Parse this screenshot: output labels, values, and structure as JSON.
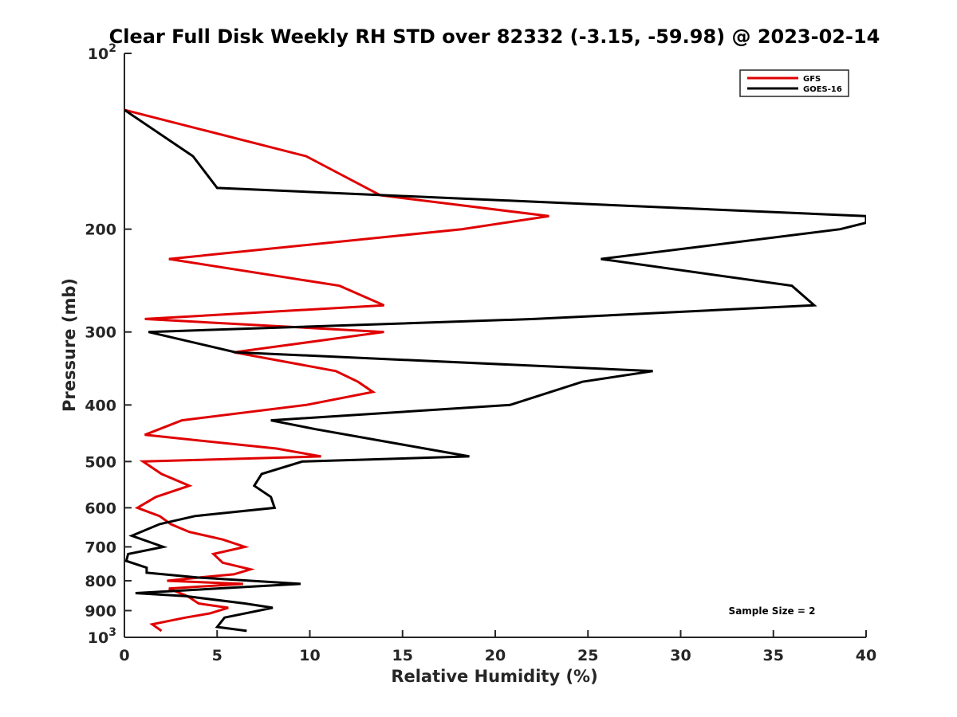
{
  "chart_data": {
    "type": "line",
    "title": "Clear Full Disk Weekly RH STD over 82332 (-3.15, -59.98) @ 2023-02-14",
    "xlabel": "Relative Humidity (%)",
    "ylabel": "Pressure (mb)",
    "xlim": [
      0,
      40
    ],
    "ylim": [
      1000,
      100
    ],
    "y_scale": "log",
    "y_reversed": true,
    "x_ticks": [
      0,
      5,
      10,
      15,
      20,
      25,
      30,
      35,
      40
    ],
    "y_ticks": [
      {
        "value": 100,
        "label": "10",
        "sup": "2"
      },
      {
        "value": 200,
        "label": "200"
      },
      {
        "value": 300,
        "label": "300"
      },
      {
        "value": 400,
        "label": "400"
      },
      {
        "value": 500,
        "label": "500"
      },
      {
        "value": 600,
        "label": "600"
      },
      {
        "value": 700,
        "label": "700"
      },
      {
        "value": 800,
        "label": "800"
      },
      {
        "value": 900,
        "label": "900"
      },
      {
        "value": 1000,
        "label": "10",
        "sup": "3"
      }
    ],
    "grid": false,
    "legend_position": "top-right",
    "annotation": "Sample Size = 2",
    "series": [
      {
        "name": "GFS",
        "color": "#e00000",
        "points": [
          [
            0,
            125
          ],
          [
            9.8,
            150
          ],
          [
            13.8,
            175
          ],
          [
            22.9,
            190
          ],
          [
            18.2,
            200
          ],
          [
            2.4,
            225
          ],
          [
            11.6,
            250
          ],
          [
            14.0,
            270
          ],
          [
            1.1,
            285
          ],
          [
            14.0,
            300
          ],
          [
            5.9,
            325
          ],
          [
            11.4,
            350
          ],
          [
            12.6,
            365
          ],
          [
            13.4,
            380
          ],
          [
            9.8,
            400
          ],
          [
            3.1,
            425
          ],
          [
            1.1,
            450
          ],
          [
            8.2,
            475
          ],
          [
            10.6,
            490
          ],
          [
            1.0,
            500
          ],
          [
            2.0,
            525
          ],
          [
            3.5,
            550
          ],
          [
            1.7,
            575
          ],
          [
            0.7,
            600
          ],
          [
            1.9,
            620
          ],
          [
            2.5,
            640
          ],
          [
            3.5,
            660
          ],
          [
            5.3,
            680
          ],
          [
            6.5,
            700
          ],
          [
            4.8,
            720
          ],
          [
            5.3,
            745
          ],
          [
            6.8,
            765
          ],
          [
            5.9,
            780
          ],
          [
            4.0,
            790
          ],
          [
            2.3,
            800
          ],
          [
            6.4,
            810
          ],
          [
            2.4,
            825
          ],
          [
            3.4,
            850
          ],
          [
            4.0,
            875
          ],
          [
            5.6,
            890
          ],
          [
            4.6,
            910
          ],
          [
            3.3,
            925
          ],
          [
            1.5,
            950
          ],
          [
            2.0,
            975
          ]
        ]
      },
      {
        "name": "GOES-16",
        "color": "#000000",
        "points": [
          [
            0,
            125
          ],
          [
            3.7,
            150
          ],
          [
            5.0,
            170
          ],
          [
            40,
            190
          ],
          [
            40,
            195
          ],
          [
            38.6,
            200
          ],
          [
            25.7,
            225
          ],
          [
            36.0,
            250
          ],
          [
            37.2,
            270
          ],
          [
            22.1,
            285
          ],
          [
            1.3,
            300
          ],
          [
            6.0,
            325
          ],
          [
            28.5,
            350
          ],
          [
            24.7,
            365
          ],
          [
            20.8,
            400
          ],
          [
            7.9,
            425
          ],
          [
            10.3,
            440
          ],
          [
            16.2,
            475
          ],
          [
            18.6,
            490
          ],
          [
            9.6,
            500
          ],
          [
            7.4,
            525
          ],
          [
            7.0,
            550
          ],
          [
            7.9,
            575
          ],
          [
            8.1,
            600
          ],
          [
            3.8,
            620
          ],
          [
            1.9,
            640
          ],
          [
            0.4,
            670
          ],
          [
            2.1,
            700
          ],
          [
            0.2,
            720
          ],
          [
            0.1,
            740
          ],
          [
            1.2,
            760
          ],
          [
            1.2,
            775
          ],
          [
            4.0,
            790
          ],
          [
            9.5,
            810
          ],
          [
            0.6,
            840
          ],
          [
            3.3,
            850
          ],
          [
            6.5,
            875
          ],
          [
            8.0,
            890
          ],
          [
            5.4,
            925
          ],
          [
            5.0,
            960
          ],
          [
            6.6,
            975
          ]
        ]
      }
    ]
  }
}
